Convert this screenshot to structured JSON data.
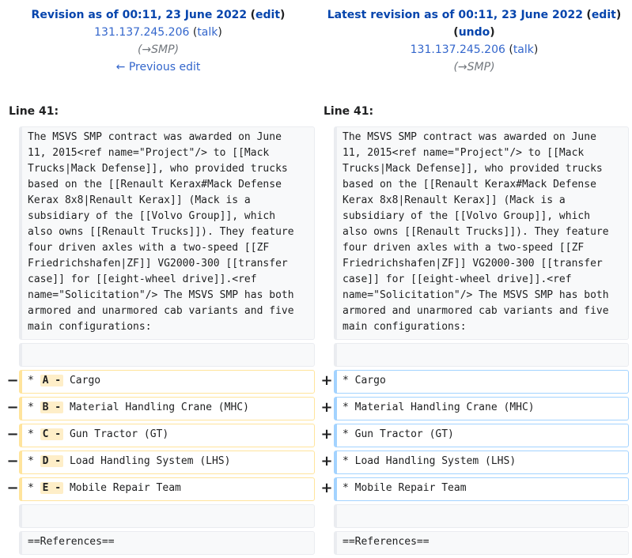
{
  "left_header": {
    "title_link": "Revision as of 00:11, 23 June 2022",
    "edit_link": "edit",
    "user_link": "131.137.245.206",
    "talk_link": "talk",
    "summary_prefix": "(",
    "summary_link": "→SMP",
    "summary_suffix": ")",
    "prev_edit": "← Previous edit"
  },
  "right_header": {
    "title_link": "Latest revision as of 00:11, 23 June 2022",
    "edit_link": "edit",
    "undo_link": "undo",
    "user_link": "131.137.245.206",
    "talk_link": "talk",
    "summary_prefix": "(",
    "summary_link": "→SMP",
    "summary_suffix": ")"
  },
  "line_label_left": "Line 41:",
  "line_label_right": "Line 41:",
  "context_paragraph": "The MSVS SMP contract was awarded on June\n11, 2015<ref name=\"Project\"/> to [[Mack\nTrucks|Mack Defense]], who provided trucks\nbased on the [[Renault Kerax#Mack Defense\nKerax 8x8|Renault Kerax]] (Mack is a\nsubsidiary of the [[Volvo Group]], which\nalso owns [[Renault Trucks]]). They feature\nfour driven axles with a two-speed [[ZF\nFriedrichshafen|ZF]] VG2000-300 [[transfer\ncase]] for [[eight-wheel drive]].<ref\nname=\"Solicitation\"/> The MSVS SMP has both\narmored and unarmored cab variants and five\nmain configurations:",
  "minus_marker": "−",
  "plus_marker": "+",
  "removed_lines": [
    {
      "prefix": "* ",
      "highlight": "A -",
      "rest": " Cargo"
    },
    {
      "prefix": "* ",
      "highlight": "B -",
      "rest": " Material Handling Crane (MHC)"
    },
    {
      "prefix": "* ",
      "highlight": "C -",
      "rest": " Gun Tractor (GT)"
    },
    {
      "prefix": "* ",
      "highlight": "D -",
      "rest": " Load Handling System (LHS)"
    },
    {
      "prefix": "* ",
      "highlight": "E -",
      "rest": " Mobile Repair Team"
    }
  ],
  "added_lines": [
    "* Cargo",
    "* Material Handling Crane (MHC)",
    "* Gun Tractor (GT)",
    "* Load Handling System (LHS)",
    "* Mobile Repair Team"
  ],
  "references_line": "==References=="
}
